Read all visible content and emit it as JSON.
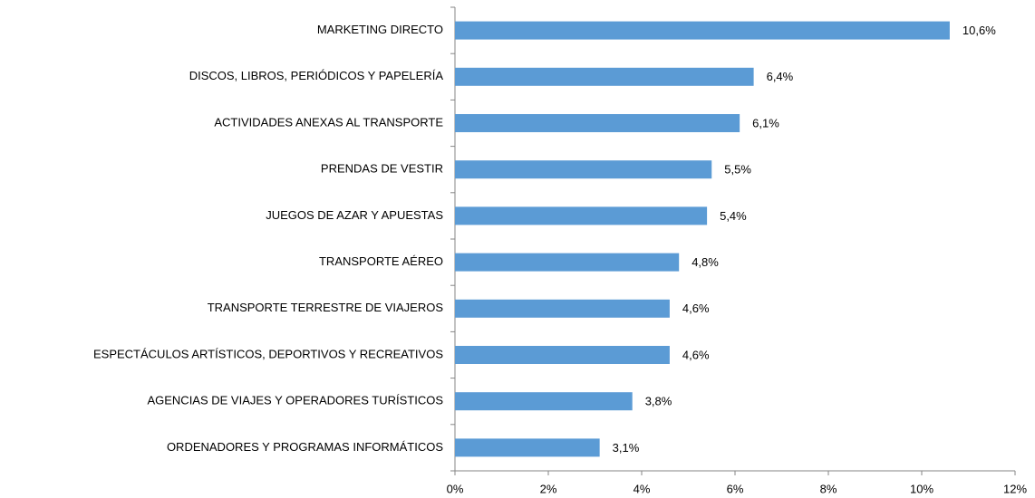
{
  "chart_data": {
    "type": "barh",
    "categories": [
      "MARKETING DIRECTO",
      "DISCOS, LIBROS, PERIÓDICOS Y PAPELERÍA",
      "ACTIVIDADES ANEXAS AL TRANSPORTE",
      "PRENDAS DE VESTIR",
      "JUEGOS DE AZAR Y APUESTAS",
      "TRANSPORTE AÉREO",
      "TRANSPORTE TERRESTRE DE VIAJEROS",
      "ESPECTÁCULOS ARTÍSTICOS, DEPORTIVOS Y RECREATIVOS",
      "AGENCIAS DE VIAJES Y OPERADORES TURÍSTICOS",
      "ORDENADORES Y PROGRAMAS INFORMÁTICOS"
    ],
    "values": [
      10.6,
      6.4,
      6.1,
      5.5,
      5.4,
      4.8,
      4.6,
      4.6,
      3.8,
      3.1
    ],
    "value_labels": [
      "10,6%",
      "6,4%",
      "6,1%",
      "5,5%",
      "5,4%",
      "4,8%",
      "4,6%",
      "4,6%",
      "3,8%",
      "3,1%"
    ],
    "color": "#5b9bd5",
    "xlim": [
      0,
      12
    ],
    "xticks": [
      {
        "value": 0,
        "label": "0%"
      },
      {
        "value": 2,
        "label": "2%"
      },
      {
        "value": 4,
        "label": "4%"
      },
      {
        "value": 6,
        "label": "6%"
      },
      {
        "value": 8,
        "label": "8%"
      },
      {
        "value": 10,
        "label": "10%"
      },
      {
        "value": 12,
        "label": "12%"
      }
    ],
    "grid": false
  }
}
